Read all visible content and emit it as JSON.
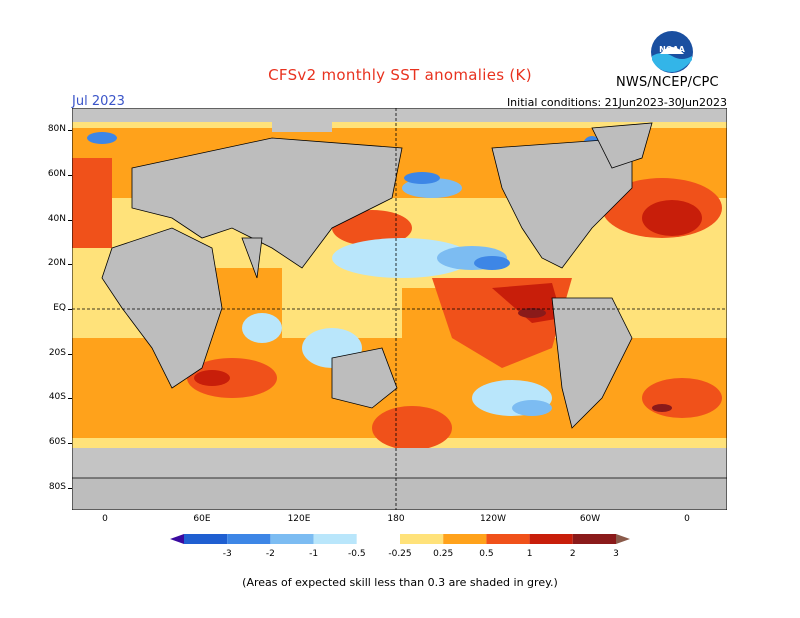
{
  "title": "CFSv2 monthly SST anomalies (K)",
  "forecast_month": "Jul 2023",
  "initial_conditions": "Initial conditions: 21Jun2023-30Jun2023",
  "agency": "NWS/NCEP/CPC",
  "logo_text": "NOAA",
  "lat_labels": [
    "80N",
    "60N",
    "40N",
    "20N",
    "EQ",
    "20S",
    "40S",
    "60S",
    "80S"
  ],
  "lon_labels": [
    "0",
    "60E",
    "120E",
    "180",
    "120W",
    "60W",
    "0"
  ],
  "colorbar": {
    "tick_labels": [
      "-3",
      "-2",
      "-1",
      "-0.5",
      "-0.25",
      "0.25",
      "0.5",
      "1",
      "2",
      "3"
    ],
    "colors": [
      "#3a0aa0",
      "#1f5fd1",
      "#3d86e6",
      "#7cbcf2",
      "#b9e6fb",
      "#ffffff",
      "#ffe27a",
      "#ffa21b",
      "#f0511a",
      "#c81e0a",
      "#8a1a1a",
      "#8a5a4a"
    ]
  },
  "footnote": "(Areas of expected skill less than 0.3 are shaded in grey.)",
  "map_colors": {
    "land": "#bdbdbd",
    "low_skill": "#c4c4c4",
    "warm_weak": "#ffe27a",
    "warm_mod": "#ffa21b",
    "warm_strong": "#f0511a",
    "warm_very": "#c81e0a",
    "warm_extreme": "#8a1a1a",
    "cool_weak": "#b9e6fb",
    "cool_mod": "#7cbcf2",
    "cool_strong": "#3d86e6"
  }
}
